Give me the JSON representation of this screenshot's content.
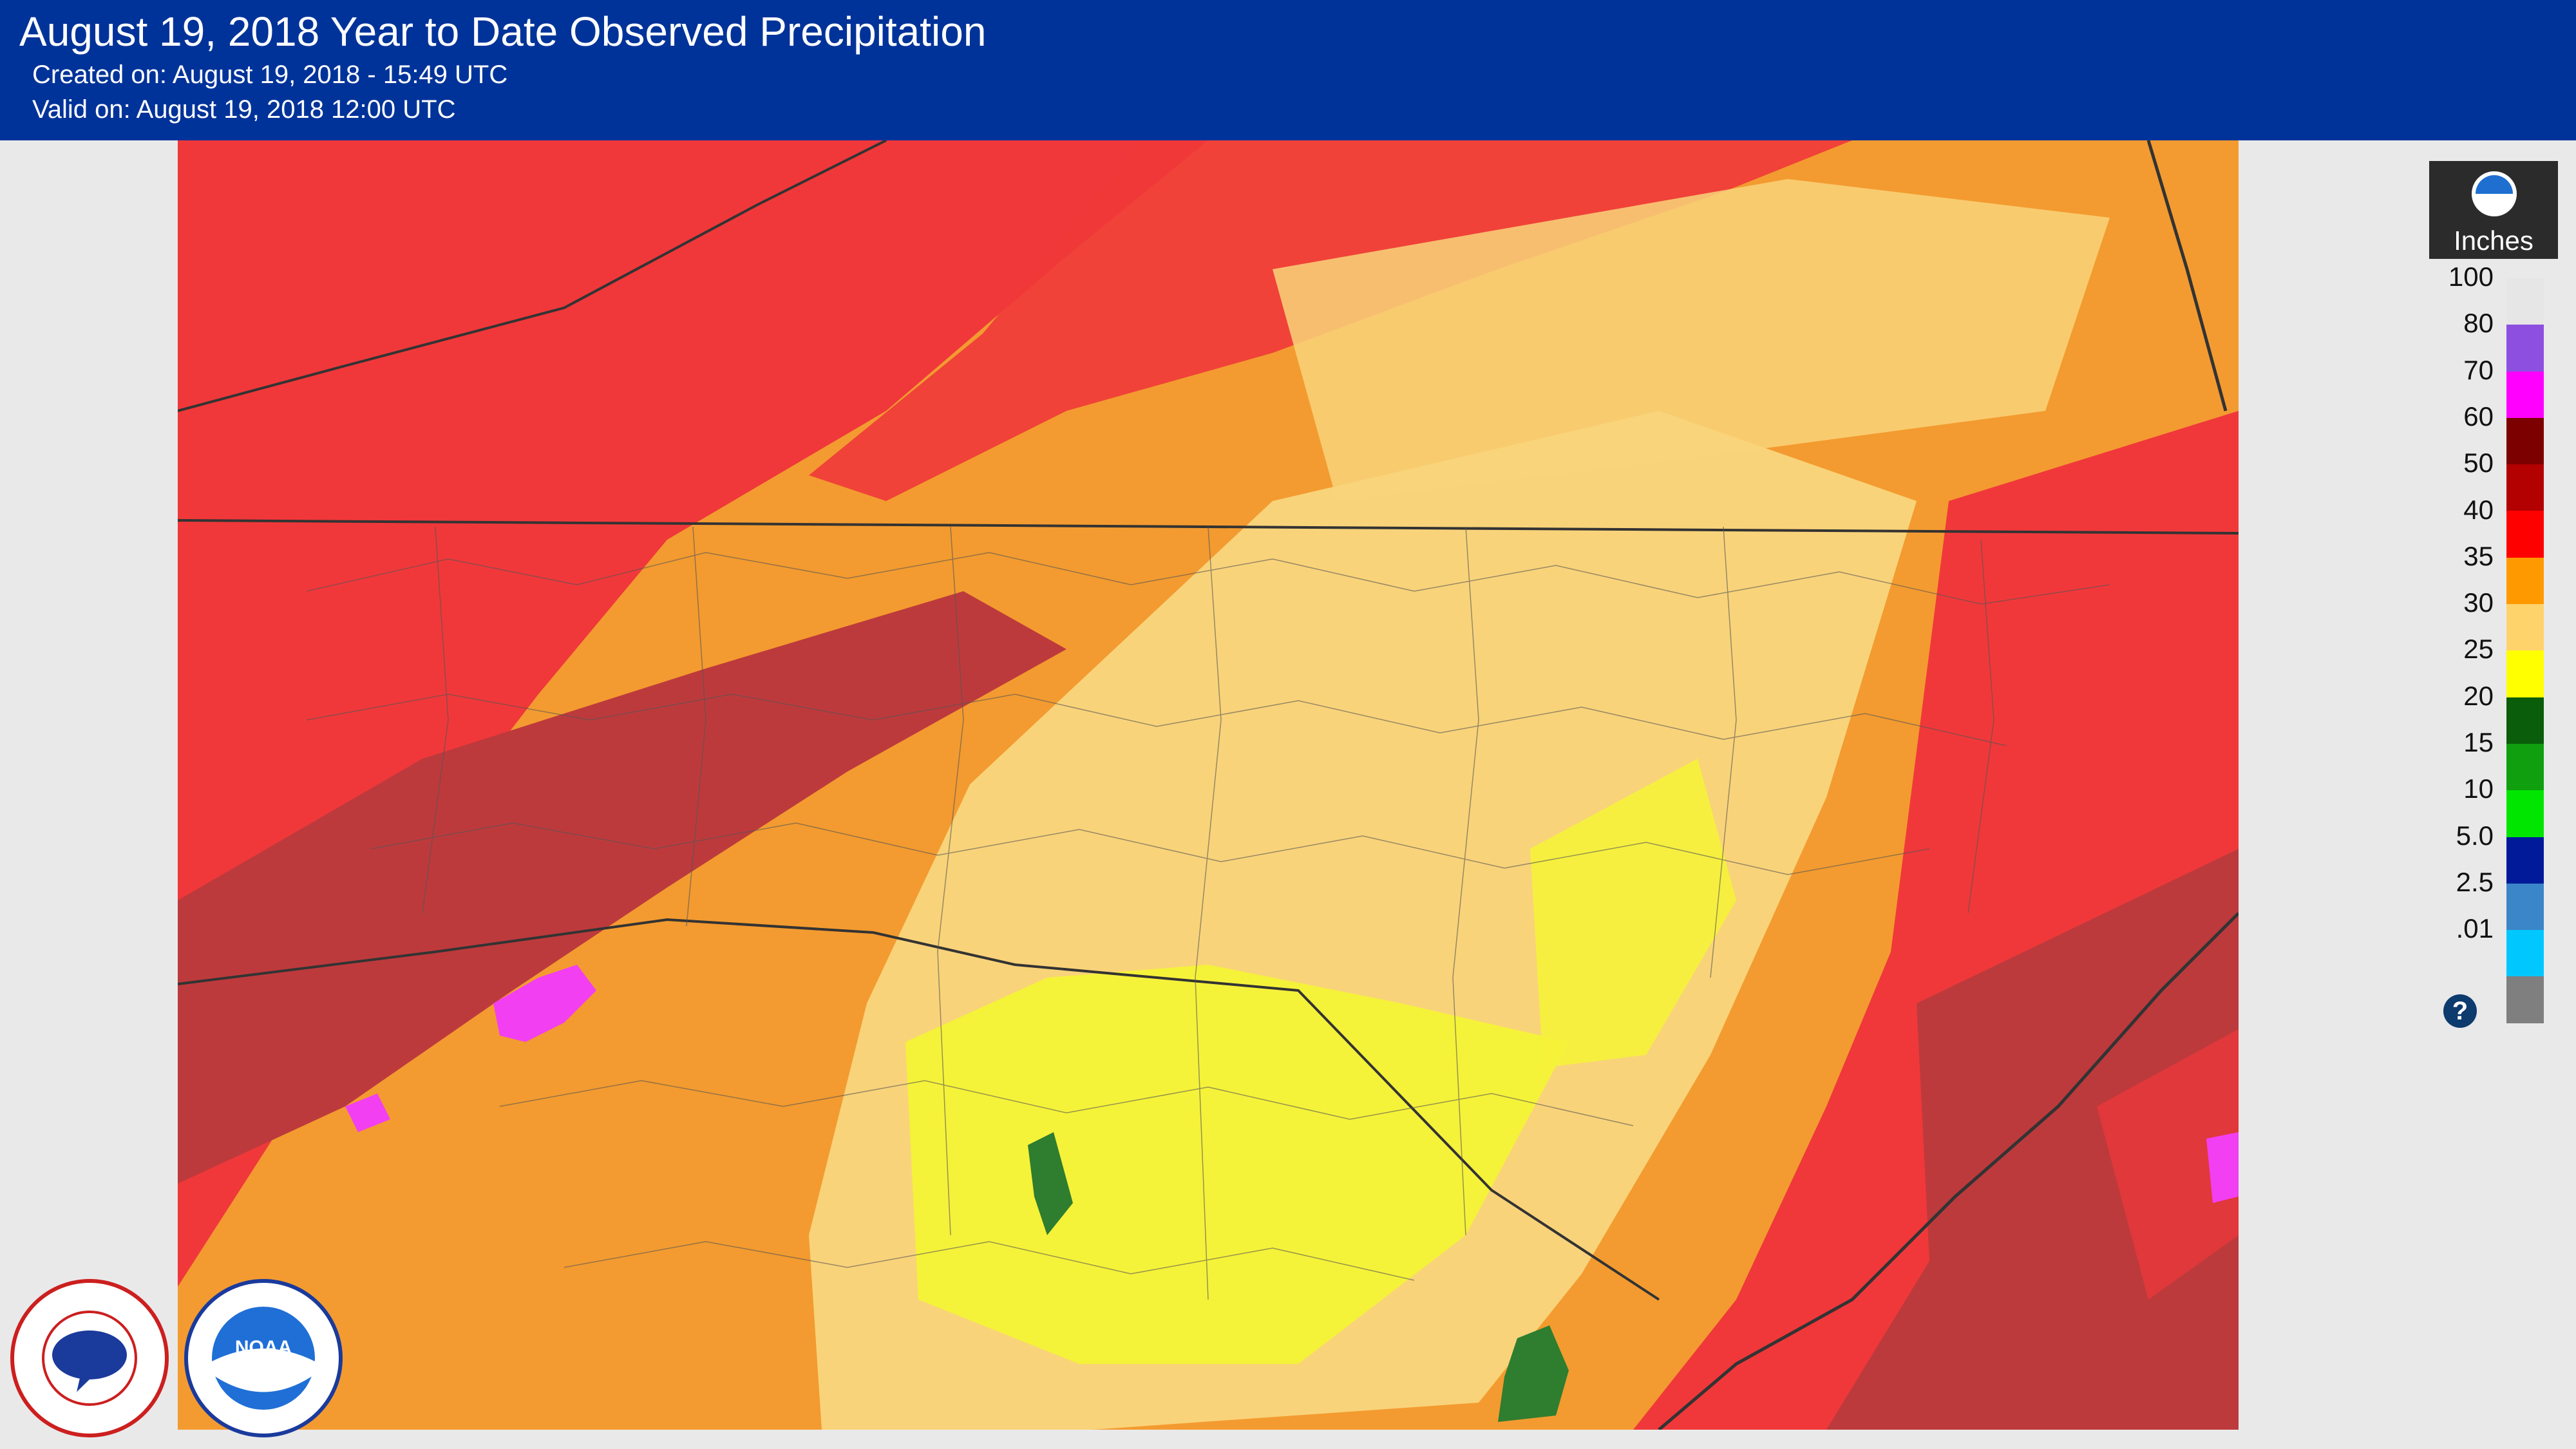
{
  "header": {
    "title": "August 19, 2018 Year to Date Observed Precipitation",
    "created": "Created on: August 19, 2018 - 15:49 UTC",
    "valid": "Valid on: August 19, 2018 12:00 UTC"
  },
  "legend": {
    "unit": "Inches",
    "help": "?",
    "items": [
      {
        "label": "100",
        "color": "#e6e6e6"
      },
      {
        "label": "80",
        "color": "#8d4fe0"
      },
      {
        "label": "70",
        "color": "#ff00ff"
      },
      {
        "label": "60",
        "color": "#7d0000"
      },
      {
        "label": "50",
        "color": "#b30000"
      },
      {
        "label": "40",
        "color": "#ff0000"
      },
      {
        "label": "35",
        "color": "#ff9900"
      },
      {
        "label": "30",
        "color": "#ffd36b"
      },
      {
        "label": "25",
        "color": "#ffff00"
      },
      {
        "label": "20",
        "color": "#0a5d0a"
      },
      {
        "label": "15",
        "color": "#0f9f0f"
      },
      {
        "label": "10",
        "color": "#00e600"
      },
      {
        "label": "5.0",
        "color": "#001a99"
      },
      {
        "label": "2.5",
        "color": "#3a86c8"
      },
      {
        "label": ".01",
        "color": "#00c8ff"
      },
      {
        "label": "",
        "color": "#7f7f7f"
      }
    ]
  },
  "map": {
    "colors": {
      "red": "#f0383a",
      "dark_red": "#bd3a3c",
      "orange": "#f39b30",
      "light_orange": "#f9d37a",
      "yellow": "#f5f23a",
      "green": "#2f7d2f",
      "magenta": "#f23ff2",
      "boundary": "#333333"
    }
  },
  "logos": {
    "nws": "NATIONAL WEATHER SERVICE",
    "noaa": "NOAA"
  }
}
